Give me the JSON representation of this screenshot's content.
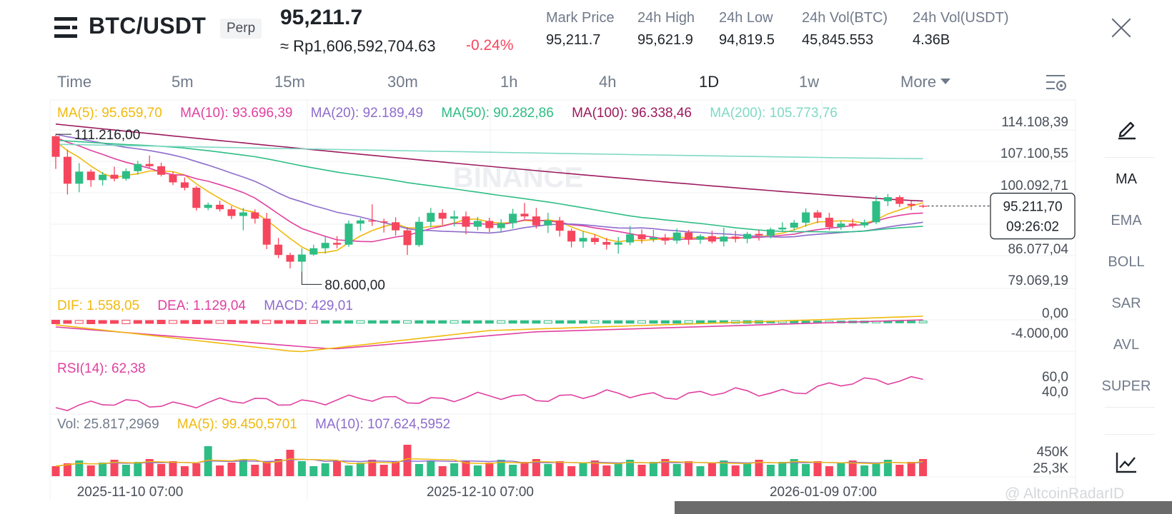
{
  "header": {
    "pair": "BTC/USDT",
    "contract_type": "Perp",
    "last_price": "95,211.7",
    "idr_price": "≈ Rp1,606,592,704.63",
    "change": "-0.24%",
    "stats": [
      {
        "label": "Mark Price",
        "value": "95,211.7"
      },
      {
        "label": "24h High",
        "value": "95,621.9"
      },
      {
        "label": "24h Low",
        "value": "94,819.5"
      },
      {
        "label": "24h Vol(BTC)",
        "value": "45,845.553"
      },
      {
        "label": "24h Vol(USDT)",
        "value": "4.36B"
      }
    ]
  },
  "tabs": [
    {
      "label": "Time"
    },
    {
      "label": "5m"
    },
    {
      "label": "15m"
    },
    {
      "label": "30m"
    },
    {
      "label": "1h"
    },
    {
      "label": "4h"
    },
    {
      "label": "1D",
      "active": true
    },
    {
      "label": "1w"
    },
    {
      "label": "More"
    }
  ],
  "indicators": {
    "ma": [
      {
        "label": "MA(5): 95.659,70",
        "color": "#f0b90b"
      },
      {
        "label": "MA(10): 93.696,39",
        "color": "#e040a0"
      },
      {
        "label": "MA(20): 92.189,49",
        "color": "#8e6ccc"
      },
      {
        "label": "MA(50): 90.282,86",
        "color": "#2ebd85"
      },
      {
        "label": "MA(100): 96.338,46",
        "color": "#9c1a5e"
      },
      {
        "label": "MA(200): 105.773,76",
        "color": "#7fd9c4"
      }
    ],
    "macd": [
      {
        "label": "DIF: 1.558,05",
        "color": "#f0b90b"
      },
      {
        "label": "DEA: 1.129,04",
        "color": "#e040a0"
      },
      {
        "label": "MACD: 429,01",
        "color": "#8e6ccc"
      }
    ],
    "rsi": {
      "label": "RSI(14): 62,38",
      "color": "#e040a0"
    },
    "vol": [
      {
        "label": "Vol: 25.817,2969",
        "color": "#707a8a"
      },
      {
        "label": "MA(5): 99.450,5701",
        "color": "#f0b90b"
      },
      {
        "label": "MA(10): 107.624,5952",
        "color": "#8e6ccc"
      }
    ]
  },
  "price_axis": [
    "114.108,39",
    "107.100,55",
    "100.092,71",
    "86.077,04",
    "79.069,19"
  ],
  "current_price_tag": {
    "price": "95.211,70",
    "countdown": "09:26:02"
  },
  "high_marker": "111.216,00",
  "low_marker": "80.600,00",
  "macd_axis": [
    "0,00",
    "-4.000,00"
  ],
  "rsi_axis": [
    "60,0",
    "40,0"
  ],
  "vol_axis": [
    "450K",
    "25,3K"
  ],
  "date_axis": [
    "2025-11-10 07:00",
    "2025-12-10 07:00",
    "2026-01-09 07:00"
  ],
  "watermark": "BINANCE",
  "credit": "@ AltcoinRadarID",
  "side_tools": [
    {
      "label": "MA",
      "active": true
    },
    {
      "label": "EMA"
    },
    {
      "label": "BOLL"
    },
    {
      "label": "SAR"
    },
    {
      "label": "AVL"
    },
    {
      "label": "SUPER"
    }
  ],
  "chart_data": {
    "type": "candlestick",
    "candles_ohlc": [
      [
        110800,
        111216,
        103500,
        106200
      ],
      [
        106200,
        107800,
        97800,
        100200
      ],
      [
        100200,
        104800,
        98300,
        102900
      ],
      [
        102900,
        103400,
        99500,
        101000
      ],
      [
        101000,
        102800,
        99800,
        102200
      ],
      [
        102200,
        104000,
        100700,
        101300
      ],
      [
        101300,
        103600,
        100900,
        103000
      ],
      [
        103000,
        105300,
        102200,
        104600
      ],
      [
        104600,
        106500,
        103600,
        104100
      ],
      [
        104100,
        104900,
        101800,
        102200
      ],
      [
        102200,
        102900,
        99900,
        100500
      ],
      [
        100500,
        101600,
        98700,
        99300
      ],
      [
        99300,
        99700,
        94200,
        94800
      ],
      [
        94800,
        96000,
        94300,
        95500
      ],
      [
        95500,
        96400,
        94000,
        94500
      ],
      [
        94500,
        95200,
        92300,
        93000
      ],
      [
        93000,
        94800,
        89800,
        93800
      ],
      [
        93800,
        94500,
        91300,
        92400
      ],
      [
        92400,
        93700,
        85600,
        86600
      ],
      [
        86600,
        88100,
        83600,
        84300
      ],
      [
        84300,
        84800,
        81300,
        82800
      ],
      [
        82800,
        85800,
        80600,
        84400
      ],
      [
        84400,
        86600,
        84100,
        85800
      ],
      [
        85800,
        88400,
        84600,
        87000
      ],
      [
        87000,
        88500,
        85800,
        86600
      ],
      [
        86600,
        92000,
        86100,
        91300
      ],
      [
        91300,
        92500,
        89700,
        92000
      ],
      [
        92000,
        95600,
        90800,
        91800
      ],
      [
        91800,
        92400,
        89300,
        91600
      ],
      [
        91600,
        92700,
        88600,
        89800
      ],
      [
        89800,
        90500,
        84300,
        86500
      ],
      [
        86500,
        92800,
        86100,
        91700
      ],
      [
        91700,
        94800,
        90500,
        93700
      ],
      [
        93700,
        94500,
        91000,
        92400
      ],
      [
        92400,
        94200,
        90700,
        92900
      ],
      [
        92900,
        94000,
        88900,
        90600
      ],
      [
        90600,
        92800,
        89800,
        91900
      ],
      [
        91900,
        92600,
        89400,
        90300
      ],
      [
        90300,
        92300,
        89300,
        91400
      ],
      [
        91400,
        94600,
        90200,
        93500
      ],
      [
        93500,
        95900,
        92300,
        92900
      ],
      [
        92900,
        94800,
        90200,
        90900
      ],
      [
        90900,
        93700,
        89200,
        92000
      ],
      [
        92000,
        92800,
        88400,
        89700
      ],
      [
        89700,
        90200,
        86000,
        87300
      ],
      [
        87300,
        89600,
        85900,
        88100
      ],
      [
        88100,
        88900,
        86600,
        87200
      ],
      [
        87200,
        88100,
        85500,
        86600
      ],
      [
        86600,
        88300,
        84600,
        87100
      ],
      [
        87100,
        90800,
        86500,
        88900
      ],
      [
        88900,
        90000,
        86900,
        87800
      ],
      [
        87800,
        89900,
        87200,
        88200
      ],
      [
        88200,
        89000,
        86600,
        87500
      ],
      [
        87500,
        90200,
        86800,
        89300
      ],
      [
        89300,
        89900,
        86600,
        87700
      ],
      [
        87700,
        88900,
        86800,
        88500
      ],
      [
        88500,
        89700,
        86900,
        87300
      ],
      [
        87300,
        90400,
        86200,
        88400
      ],
      [
        88400,
        89700,
        87100,
        87900
      ],
      [
        87900,
        89500,
        86900,
        89000
      ],
      [
        89000,
        89900,
        87500,
        88600
      ],
      [
        88600,
        90400,
        88000,
        90000
      ],
      [
        90000,
        91600,
        89400,
        90400
      ],
      [
        90400,
        92100,
        89800,
        91500
      ],
      [
        91500,
        94700,
        90600,
        93800
      ],
      [
        93800,
        94300,
        91400,
        92600
      ],
      [
        92600,
        93700,
        89800,
        90500
      ],
      [
        90500,
        91900,
        89900,
        91300
      ],
      [
        91300,
        92400,
        90300,
        90900
      ],
      [
        90900,
        92200,
        90400,
        91600
      ],
      [
        91600,
        97500,
        91200,
        96300
      ],
      [
        96300,
        97900,
        95200,
        97200
      ],
      [
        97200,
        97600,
        95000,
        95700
      ],
      [
        95700,
        96400,
        94300,
        95300
      ],
      [
        95300,
        95600,
        94800,
        95211
      ]
    ],
    "ma_levels_last": {
      "MA5": 95659.7,
      "MA10": 93696.39,
      "MA20": 92189.49,
      "MA50": 90282.86,
      "MA100": 96338.46,
      "MA200": 105773.76
    },
    "price_range": [
      79069.19,
      114108.39
    ]
  }
}
